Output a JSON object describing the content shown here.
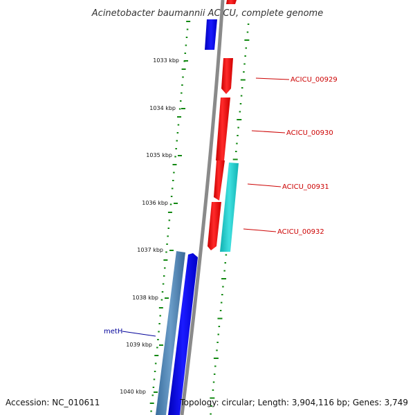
{
  "title": "Acinetobacter baumannii ACICU, complete genome",
  "accession": "Accession: NC_010611",
  "stats": "Topology: circular; Length: 3,904,116 bp; Genes: 3,749",
  "ticks": [
    "1033 kbp",
    "1034 kbp",
    "1035 kbp",
    "1036 kbp",
    "1037 kbp",
    "1038 kbp",
    "1039 kbp",
    "1040 kbp"
  ],
  "genes": [
    {
      "label": "ACICU_00929",
      "color": "#cc0000"
    },
    {
      "label": "ACICU_00930",
      "color": "#cc0000"
    },
    {
      "label": "ACICU_00931",
      "color": "#cc0000"
    },
    {
      "label": "ACICU_00932",
      "color": "#cc0000"
    },
    {
      "label": "metH",
      "color": "#000099"
    }
  ],
  "colors": {
    "backbone": "#8a8a8a",
    "forward_cds": "#ff0000",
    "reverse_cds": "#0000ff",
    "cyan_feature": "#22cccc",
    "steelblue_feature": "#4a7fb0",
    "gc_ticks": "#118811"
  }
}
